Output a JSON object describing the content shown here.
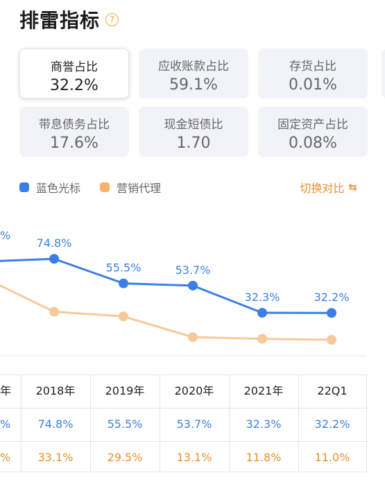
{
  "header": {
    "title": "排雷指标",
    "help_icon": "?"
  },
  "metrics": [
    {
      "label": "商誉占比",
      "value": "32.2%",
      "active": true
    },
    {
      "label": "应收账款占比",
      "value": "59.1%",
      "active": false
    },
    {
      "label": "存货占比",
      "value": "0.01%",
      "active": false
    },
    {
      "label": "带息债务占比",
      "value": "17.6%",
      "active": false
    },
    {
      "label": "现金短债比",
      "value": "1.70",
      "active": false
    },
    {
      "label": "固定资产占比",
      "value": "0.08%",
      "active": false
    }
  ],
  "legend": {
    "series1": "蓝色光标",
    "series2": "营销代理"
  },
  "toggle": {
    "label": "切换对比",
    "icon": "compare-icon"
  },
  "colors": {
    "blue": "#3b7fe6",
    "orange": "#f6c99a",
    "orange_text": "#e8902a"
  },
  "chart_data": {
    "type": "line",
    "categories": [
      "2018年",
      "2019年",
      "2020年",
      "2021年",
      "22Q1"
    ],
    "series": [
      {
        "name": "蓝色光标",
        "values": [
          74.8,
          55.5,
          53.7,
          32.3,
          32.2
        ],
        "labels": [
          "74.8%",
          "55.5%",
          "53.7%",
          "32.3%",
          "32.2%"
        ]
      },
      {
        "name": "营销代理",
        "values": [
          33.1,
          29.5,
          13.1,
          11.8,
          11.0
        ]
      }
    ],
    "partial_left_label": "%"
  },
  "table": {
    "partial_header": "年",
    "partial_row1": "%",
    "partial_row2": "%",
    "headers": [
      "2018年",
      "2019年",
      "2020年",
      "2021年",
      "22Q1"
    ],
    "row1": [
      "74.8%",
      "55.5%",
      "53.7%",
      "32.3%",
      "32.2%"
    ],
    "row2": [
      "33.1%",
      "29.5%",
      "13.1%",
      "11.8%",
      "11.0%"
    ]
  }
}
